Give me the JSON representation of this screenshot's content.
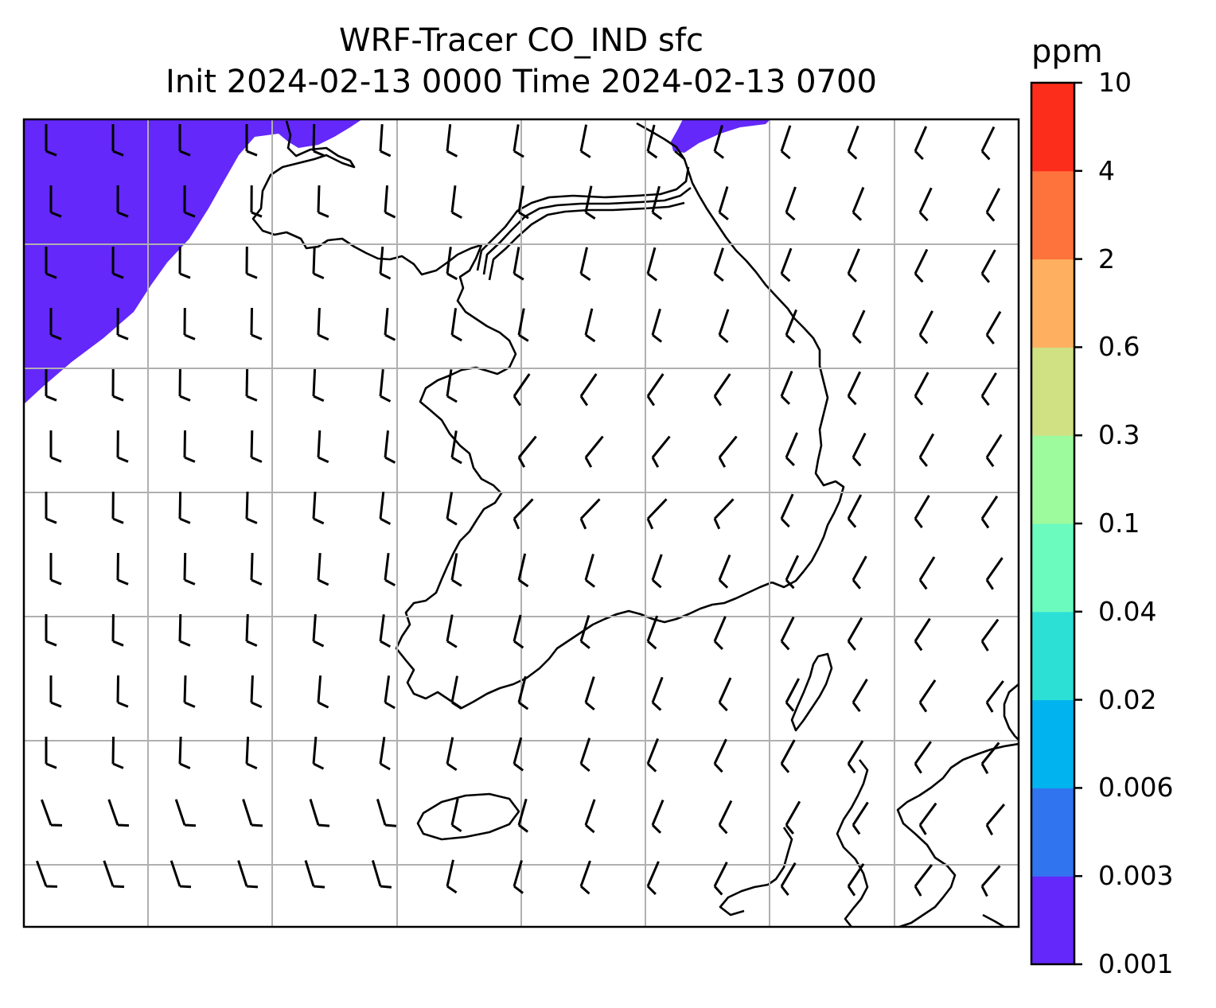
{
  "title": {
    "line1": "WRF-Tracer CO_IND sfc",
    "line2": "Init 2024-02-13 0000 Time 2024-02-13 0700"
  },
  "colorbar": {
    "unit": "ppm",
    "levels": [
      "0.001",
      "0.003",
      "0.006",
      "0.02",
      "0.04",
      "0.1",
      "0.3",
      "0.6",
      "2",
      "4",
      "10"
    ],
    "colors": [
      "#6428fa",
      "#3174ef",
      "#01b4ef",
      "#2ce0d6",
      "#6bfbbf",
      "#9dfa9d",
      "#d0e184",
      "#feb060",
      "#fe733b",
      "#fc2d1b"
    ]
  },
  "map": {
    "plume_color": "#6428fa",
    "gridline_color": "#b0b0b0",
    "coast_color": "#000000",
    "barb_color": "#000000"
  }
}
